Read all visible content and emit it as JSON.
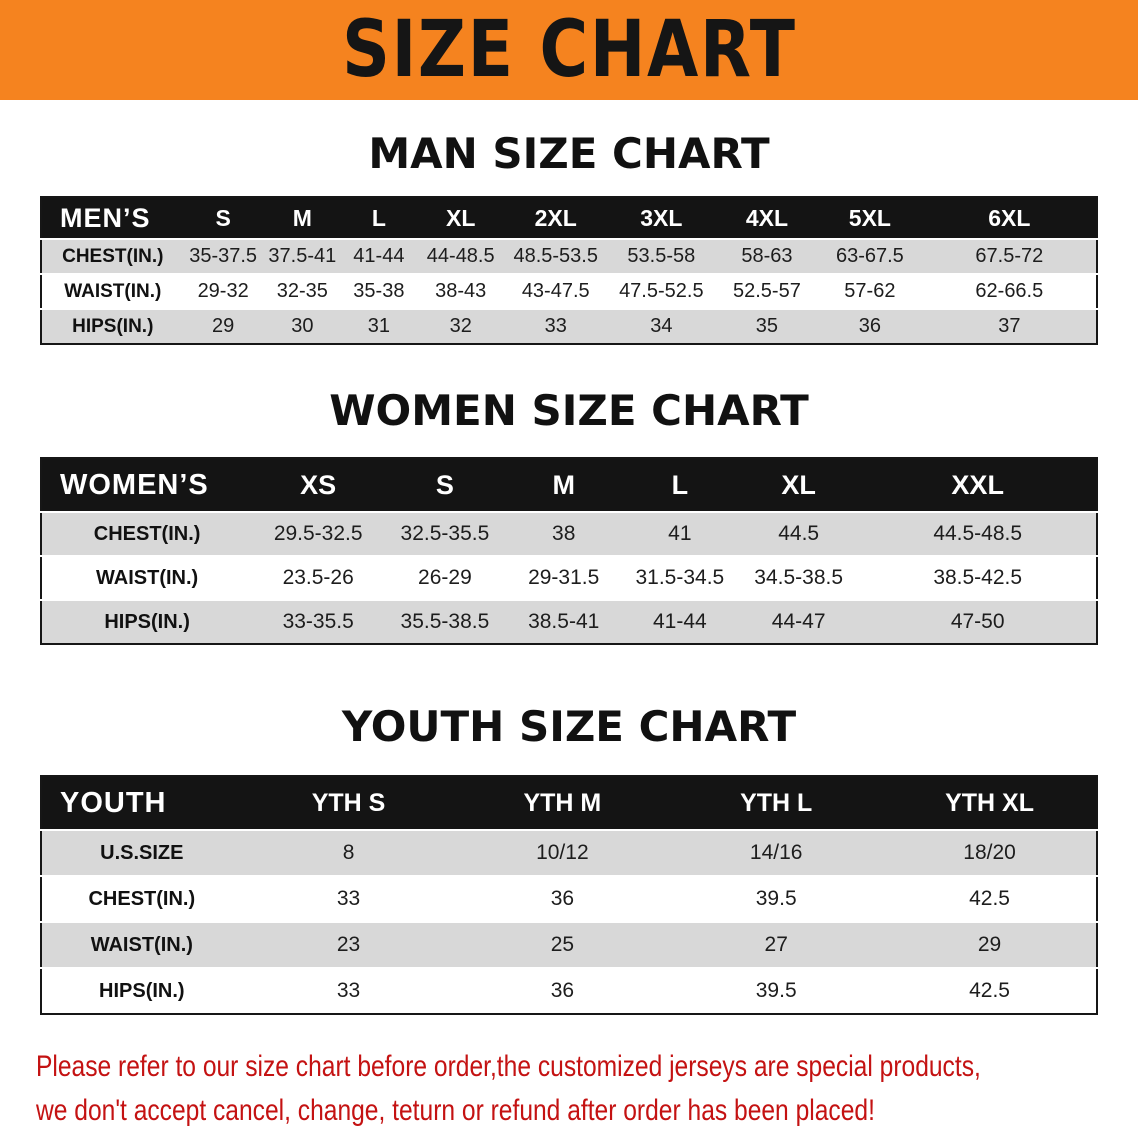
{
  "banner": {
    "title": "SIZE CHART"
  },
  "colors": {
    "banner_bg": "#f5831f",
    "table_header_bg": "#141414",
    "table_header_text": "#ffffff",
    "row_shade": "#d8d8d8",
    "note_text": "#c41212"
  },
  "men": {
    "heading": "MAN SIZE CHART",
    "header": [
      "MEN’S",
      "S",
      "M",
      "L",
      "XL",
      "2XL",
      "3XL",
      "4XL",
      "5XL",
      "6XL"
    ],
    "rows": [
      {
        "label": "CHEST(IN.)",
        "values": [
          "35-37.5",
          "37.5-41",
          "41-44",
          "44-48.5",
          "48.5-53.5",
          "53.5-58",
          "58-63",
          "63-67.5",
          "67.5-72"
        ]
      },
      {
        "label": "WAIST(IN.)",
        "values": [
          "29-32",
          "32-35",
          "35-38",
          "38-43",
          "43-47.5",
          "47.5-52.5",
          "52.5-57",
          "57-62",
          "62-66.5"
        ]
      },
      {
        "label": "HIPS(IN.)",
        "values": [
          "29",
          "30",
          "31",
          "32",
          "33",
          "34",
          "35",
          "36",
          "37"
        ]
      }
    ]
  },
  "women": {
    "heading": "WOMEN SIZE CHART",
    "header": [
      "WOMEN’S",
      "XS",
      "S",
      "M",
      "L",
      "XL",
      "XXL"
    ],
    "rows": [
      {
        "label": "CHEST(IN.)",
        "values": [
          "29.5-32.5",
          "32.5-35.5",
          "38",
          "41",
          "44.5",
          "44.5-48.5"
        ]
      },
      {
        "label": "WAIST(IN.)",
        "values": [
          "23.5-26",
          "26-29",
          "29-31.5",
          "31.5-34.5",
          "34.5-38.5",
          "38.5-42.5"
        ]
      },
      {
        "label": "HIPS(IN.)",
        "values": [
          "33-35.5",
          "35.5-38.5",
          "38.5-41",
          "41-44",
          "44-47",
          "47-50"
        ]
      }
    ]
  },
  "youth": {
    "heading": "YOUTH SIZE CHART",
    "header": [
      "YOUTH",
      "YTH S",
      "YTH M",
      "YTH L",
      "YTH XL"
    ],
    "rows": [
      {
        "label": "U.S.SIZE",
        "values": [
          "8",
          "10/12",
          "14/16",
          "18/20"
        ]
      },
      {
        "label": "CHEST(IN.)",
        "values": [
          "33",
          "36",
          "39.5",
          "42.5"
        ]
      },
      {
        "label": "WAIST(IN.)",
        "values": [
          "23",
          "25",
          "27",
          "29"
        ]
      },
      {
        "label": "HIPS(IN.)",
        "values": [
          "33",
          "36",
          "39.5",
          "42.5"
        ]
      }
    ]
  },
  "note": {
    "line1": "Please refer to our size chart before order,the customized jerseys are special products,",
    "line2": "we don't accept cancel, change, teturn or refund after order has been placed!"
  }
}
